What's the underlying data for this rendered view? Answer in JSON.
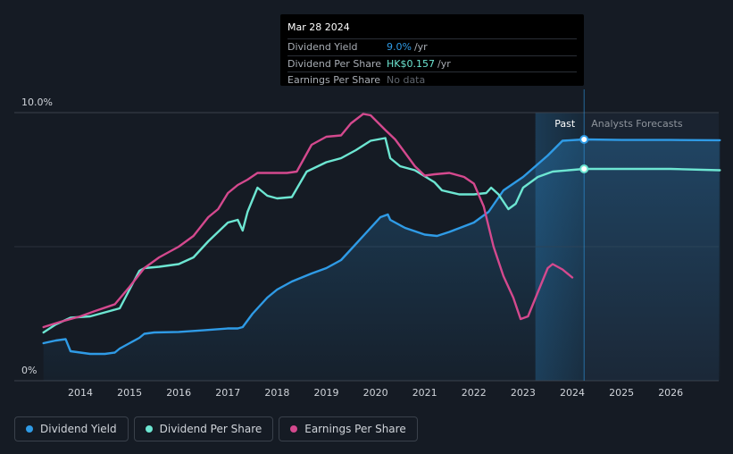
{
  "tooltip": {
    "date": "Mar 28 2024",
    "rows": [
      {
        "label": "Dividend Yield",
        "value": "9.0%",
        "unit": "/yr"
      },
      {
        "label": "Dividend Per Share",
        "value": "HK$0.157",
        "unit": "/yr"
      },
      {
        "label": "Earnings Per Share",
        "value": "No data"
      }
    ]
  },
  "colors": {
    "background": "#151b24",
    "dividend_yield": "#2f9be6",
    "dividend_per_share": "#6de6d2",
    "earnings_per_share": "#d4498e",
    "grid": "#3a414b"
  },
  "legend": [
    {
      "label": "Dividend Yield",
      "color_key": "dividend_yield"
    },
    {
      "label": "Dividend Per Share",
      "color_key": "dividend_per_share"
    },
    {
      "label": "Earnings Per Share",
      "color_key": "earnings_per_share"
    }
  ],
  "chart_data": {
    "type": "line",
    "title": "",
    "xlabel": "",
    "ylabel": "",
    "ylim": [
      0,
      10
    ],
    "xlim": [
      2013.2,
      2027.0
    ],
    "y_tick_labels": [
      "10.0%",
      "0%"
    ],
    "x_ticks": [
      2014,
      2015,
      2016,
      2017,
      2018,
      2019,
      2020,
      2021,
      2022,
      2023,
      2024,
      2025,
      2026
    ],
    "past_label": "Past",
    "forecast_label": "Analysts Forecasts",
    "forecast_start": 2024.24,
    "highlight_start": 2023.25,
    "series": [
      {
        "name": "Dividend Yield",
        "color_key": "dividend_yield",
        "fill": true,
        "x": [
          2013.25,
          2013.5,
          2013.7,
          2013.8,
          2014.0,
          2014.2,
          2014.5,
          2014.7,
          2014.8,
          2015.0,
          2015.2,
          2015.3,
          2015.5,
          2016.0,
          2016.5,
          2017.0,
          2017.2,
          2017.3,
          2017.5,
          2017.8,
          2018.0,
          2018.3,
          2018.7,
          2019.0,
          2019.3,
          2019.5,
          2019.8,
          2020.1,
          2020.25,
          2020.3,
          2020.6,
          2021.0,
          2021.25,
          2021.5,
          2022.0,
          2022.3,
          2022.6,
          2023.0,
          2023.5,
          2023.8,
          2024.24,
          2025.0,
          2026.0,
          2027.0
        ],
        "values": [
          1.4,
          1.5,
          1.55,
          1.1,
          1.05,
          1.0,
          1.0,
          1.05,
          1.2,
          1.4,
          1.6,
          1.75,
          1.8,
          1.82,
          1.88,
          1.95,
          1.95,
          2.0,
          2.5,
          3.1,
          3.4,
          3.7,
          4.0,
          4.2,
          4.5,
          4.9,
          5.5,
          6.1,
          6.2,
          6.0,
          5.7,
          5.45,
          5.4,
          5.55,
          5.9,
          6.3,
          7.1,
          7.6,
          8.4,
          8.95,
          9.0,
          8.98,
          8.98,
          8.97
        ]
      },
      {
        "name": "Dividend Per Share",
        "color_key": "dividend_per_share",
        "fill": false,
        "x": [
          2013.25,
          2013.5,
          2013.8,
          2014.2,
          2014.6,
          2014.8,
          2015.0,
          2015.2,
          2015.3,
          2015.6,
          2016.0,
          2016.3,
          2016.6,
          2017.0,
          2017.2,
          2017.3,
          2017.4,
          2017.6,
          2017.8,
          2018.0,
          2018.3,
          2018.6,
          2019.0,
          2019.3,
          2019.6,
          2019.9,
          2020.2,
          2020.3,
          2020.5,
          2020.8,
          2021.2,
          2021.35,
          2021.7,
          2022.0,
          2022.25,
          2022.35,
          2022.5,
          2022.7,
          2022.85,
          2023.0,
          2023.3,
          2023.6,
          2024.24,
          2025.0,
          2026.0,
          2027.0
        ],
        "values": [
          1.8,
          2.1,
          2.35,
          2.4,
          2.6,
          2.7,
          3.4,
          4.1,
          4.2,
          4.25,
          4.35,
          4.6,
          5.2,
          5.9,
          6.0,
          5.6,
          6.3,
          7.2,
          6.9,
          6.8,
          6.85,
          7.8,
          8.15,
          8.3,
          8.6,
          8.95,
          9.05,
          8.3,
          8.0,
          7.85,
          7.4,
          7.1,
          6.95,
          6.95,
          7.0,
          7.2,
          6.95,
          6.4,
          6.6,
          7.2,
          7.6,
          7.8,
          7.9,
          7.9,
          7.9,
          7.85
        ]
      },
      {
        "name": "Earnings Per Share",
        "color_key": "earnings_per_share",
        "fill": false,
        "x": [
          2013.25,
          2013.6,
          2014.0,
          2014.3,
          2014.7,
          2015.0,
          2015.3,
          2015.6,
          2016.0,
          2016.3,
          2016.6,
          2016.8,
          2017.0,
          2017.2,
          2017.4,
          2017.6,
          2017.9,
          2018.2,
          2018.4,
          2018.7,
          2019.0,
          2019.3,
          2019.5,
          2019.75,
          2019.9,
          2020.2,
          2020.4,
          2020.6,
          2020.8,
          2021.0,
          2021.2,
          2021.5,
          2021.8,
          2022.0,
          2022.2,
          2022.4,
          2022.6,
          2022.8,
          2022.95,
          2023.1,
          2023.3,
          2023.5,
          2023.6,
          2023.8,
          2024.0
        ],
        "values": [
          2.0,
          2.2,
          2.4,
          2.6,
          2.85,
          3.5,
          4.2,
          4.6,
          5.0,
          5.4,
          6.1,
          6.4,
          7.0,
          7.3,
          7.5,
          7.75,
          7.75,
          7.75,
          7.8,
          8.8,
          9.1,
          9.15,
          9.6,
          9.95,
          9.9,
          9.35,
          9.0,
          8.5,
          8.0,
          7.65,
          7.7,
          7.75,
          7.6,
          7.35,
          6.5,
          5.0,
          3.9,
          3.1,
          2.3,
          2.4,
          3.3,
          4.2,
          4.35,
          4.15,
          3.85
        ]
      }
    ]
  }
}
